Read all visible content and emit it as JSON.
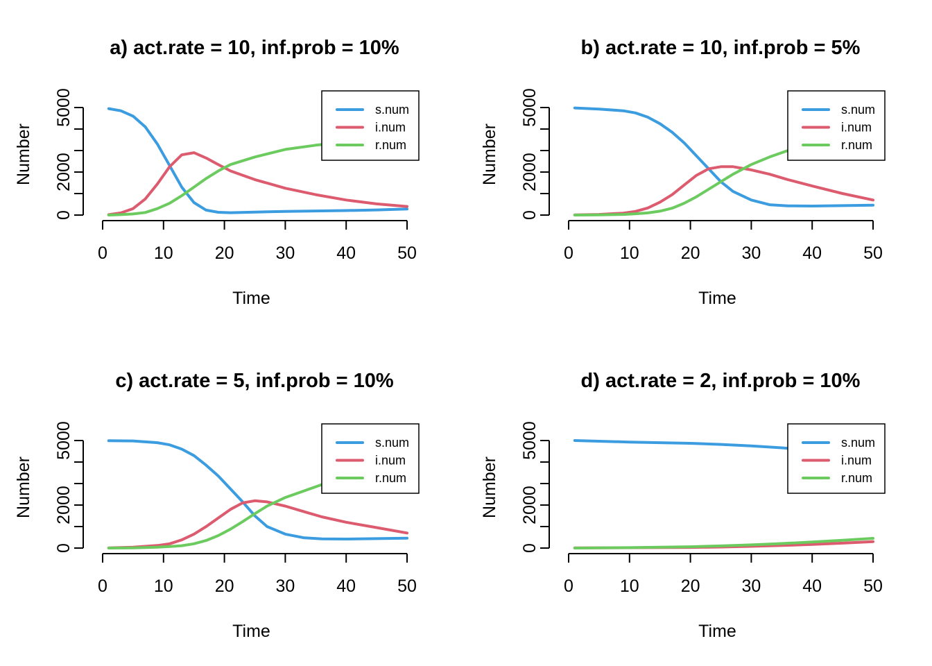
{
  "colors": {
    "s.num": "#3b9ce0",
    "i.num": "#dc5b6e",
    "r.num": "#6ccb5f"
  },
  "chart_data": [
    {
      "type": "line",
      "title": "a) act.rate = 10, inf.prob = 10%",
      "xlabel": "Time",
      "ylabel": "Number",
      "xlim": [
        0,
        50
      ],
      "ylim": [
        0,
        5000
      ],
      "xticks": [
        0,
        10,
        20,
        30,
        40,
        50
      ],
      "yticks": [
        0,
        1000,
        2000,
        3000,
        4000,
        5000
      ],
      "ytick_labels": [
        "0",
        "",
        "2000",
        "",
        "",
        "5000"
      ],
      "legend": "top-right",
      "x": [
        1,
        3,
        5,
        7,
        9,
        11,
        13,
        15,
        17,
        19,
        21,
        25,
        30,
        35,
        40,
        45,
        50
      ],
      "series": [
        {
          "name": "s.num",
          "values": [
            4950,
            4850,
            4600,
            4100,
            3300,
            2300,
            1300,
            580,
            230,
            130,
            110,
            140,
            170,
            190,
            210,
            240,
            280
          ]
        },
        {
          "name": "i.num",
          "values": [
            20,
            100,
            300,
            750,
            1450,
            2250,
            2800,
            2900,
            2650,
            2350,
            2050,
            1650,
            1250,
            950,
            700,
            520,
            400
          ]
        },
        {
          "name": "r.num",
          "values": [
            0,
            20,
            50,
            120,
            300,
            550,
            900,
            1300,
            1700,
            2050,
            2350,
            2700,
            3050,
            3250,
            3400,
            3500,
            3600
          ]
        }
      ]
    },
    {
      "type": "line",
      "title": "b) act.rate = 10, inf.prob = 5%",
      "xlabel": "Time",
      "ylabel": "Number",
      "xlim": [
        0,
        50
      ],
      "ylim": [
        0,
        5000
      ],
      "xticks": [
        0,
        10,
        20,
        30,
        40,
        50
      ],
      "yticks": [
        0,
        1000,
        2000,
        3000,
        4000,
        5000
      ],
      "ytick_labels": [
        "0",
        "",
        "2000",
        "",
        "",
        "5000"
      ],
      "legend": "top-right",
      "x": [
        1,
        5,
        9,
        11,
        13,
        15,
        17,
        19,
        21,
        23,
        25,
        27,
        30,
        33,
        36,
        40,
        45,
        50
      ],
      "series": [
        {
          "name": "s.num",
          "values": [
            4980,
            4930,
            4850,
            4750,
            4550,
            4250,
            3850,
            3350,
            2750,
            2150,
            1550,
            1100,
            700,
            480,
            430,
            420,
            440,
            460
          ]
        },
        {
          "name": "i.num",
          "values": [
            10,
            30,
            90,
            170,
            330,
            600,
            950,
            1400,
            1850,
            2150,
            2250,
            2250,
            2100,
            1900,
            1650,
            1350,
            1000,
            700
          ]
        },
        {
          "name": "r.num",
          "values": [
            0,
            10,
            30,
            60,
            100,
            180,
            320,
            550,
            850,
            1200,
            1550,
            1900,
            2350,
            2700,
            3000,
            3300,
            3550,
            3700
          ]
        }
      ]
    },
    {
      "type": "line",
      "title": "c) act.rate = 5, inf.prob = 10%",
      "xlabel": "Time",
      "ylabel": "Number",
      "xlim": [
        0,
        50
      ],
      "ylim": [
        0,
        5000
      ],
      "xticks": [
        0,
        10,
        20,
        30,
        40,
        50
      ],
      "yticks": [
        0,
        1000,
        2000,
        3000,
        4000,
        5000
      ],
      "ytick_labels": [
        "0",
        "",
        "2000",
        "",
        "",
        "5000"
      ],
      "legend": "top-right",
      "x": [
        1,
        5,
        9,
        11,
        13,
        15,
        17,
        19,
        21,
        23,
        25,
        27,
        30,
        33,
        36,
        40,
        45,
        50
      ],
      "series": [
        {
          "name": "s.num",
          "values": [
            4990,
            4980,
            4900,
            4800,
            4600,
            4300,
            3850,
            3350,
            2750,
            2150,
            1500,
            1000,
            650,
            480,
            430,
            420,
            440,
            460
          ]
        },
        {
          "name": "i.num",
          "values": [
            10,
            40,
            120,
            200,
            380,
            650,
            1000,
            1400,
            1800,
            2100,
            2200,
            2150,
            1950,
            1700,
            1450,
            1200,
            950,
            700
          ]
        },
        {
          "name": "r.num",
          "values": [
            0,
            10,
            40,
            70,
            110,
            200,
            350,
            580,
            880,
            1230,
            1600,
            1950,
            2350,
            2650,
            2950,
            3250,
            3500,
            3650
          ]
        }
      ]
    },
    {
      "type": "line",
      "title": "d) act.rate = 2, inf.prob = 10%",
      "xlabel": "Time",
      "ylabel": "Number",
      "xlim": [
        0,
        50
      ],
      "ylim": [
        0,
        5000
      ],
      "xticks": [
        0,
        10,
        20,
        30,
        40,
        50
      ],
      "yticks": [
        0,
        1000,
        2000,
        3000,
        4000,
        5000
      ],
      "ytick_labels": [
        "0",
        "",
        "2000",
        "",
        "",
        "5000"
      ],
      "legend": "top-right",
      "x": [
        1,
        10,
        20,
        25,
        30,
        35,
        40,
        45,
        50
      ],
      "series": [
        {
          "name": "s.num",
          "values": [
            5000,
            4930,
            4870,
            4820,
            4750,
            4660,
            4550,
            4420,
            4300
          ]
        },
        {
          "name": "i.num",
          "values": [
            5,
            15,
            30,
            50,
            80,
            120,
            170,
            230,
            300
          ]
        },
        {
          "name": "r.num",
          "values": [
            0,
            20,
            60,
            100,
            150,
            210,
            280,
            360,
            450
          ]
        }
      ]
    }
  ]
}
